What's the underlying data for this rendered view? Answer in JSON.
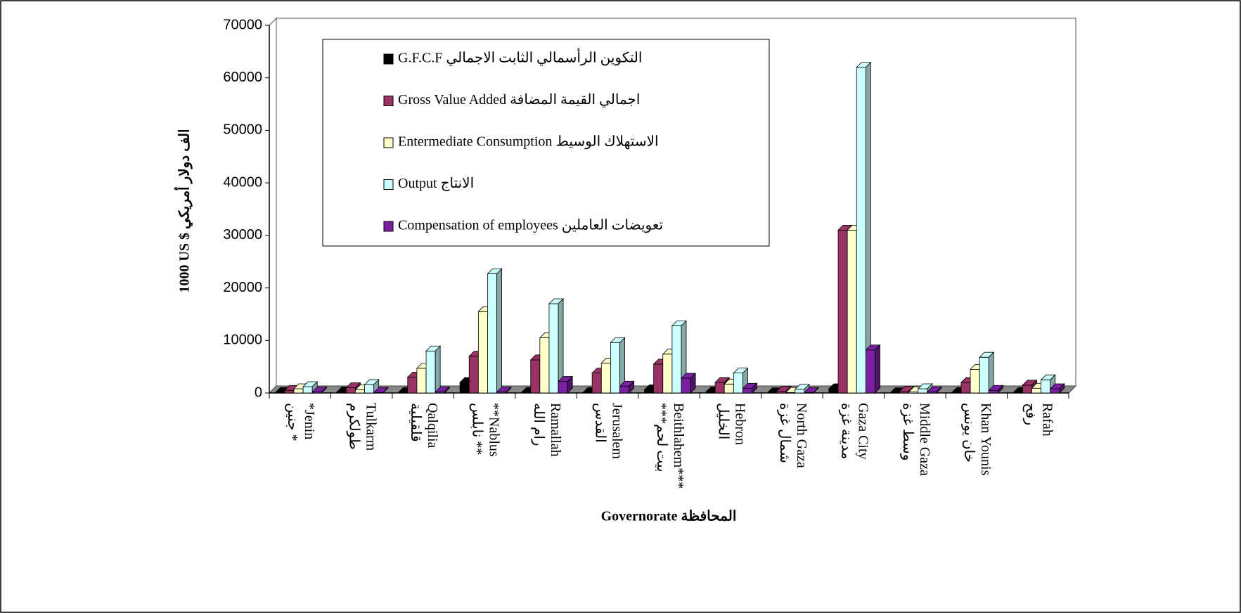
{
  "chart_data": {
    "type": "bar3d",
    "y_label": "1000 US $ الف دولار أمريكي",
    "x_label": "Governorate المحافظة",
    "categories": [
      [
        "جنين *",
        "*Jenin"
      ],
      [
        "طولكرم",
        "Tulkarm"
      ],
      [
        "قلقيلية",
        "Qalqilia"
      ],
      [
        "نابلس **",
        "**Nablus"
      ],
      [
        "رام الله",
        "Ramallah"
      ],
      [
        "القدس",
        "Jerusalem"
      ],
      [
        "***بيت لحم",
        "Beithlahem***"
      ],
      [
        "الخليل",
        "Hebron"
      ],
      [
        "شمال غزة",
        "North Gaza"
      ],
      [
        "مدينة غزة",
        "Gaza City"
      ],
      [
        "وسط غزة",
        "Middle Gaza"
      ],
      [
        "خان يونس",
        "Khan Younis"
      ],
      [
        "رفح",
        "Rafah"
      ]
    ],
    "series": [
      {
        "name": "G.F.C.F التكوين الرأسمالي الثابت الاجمالي",
        "color": "#000000",
        "values": [
          100,
          200,
          100,
          2000,
          100,
          100,
          600,
          200,
          50,
          800,
          50,
          100,
          100
        ]
      },
      {
        "name": "Gross Value Added اجمالي القيمة المضافة",
        "color": "#993366",
        "values": [
          500,
          1000,
          3000,
          7000,
          6300,
          3800,
          5500,
          2000,
          300,
          31000,
          300,
          2000,
          1500
        ]
      },
      {
        "name": "Entermediate Consumption الاستهلاك الوسيط",
        "color": "#ffffcc",
        "values": [
          800,
          600,
          4700,
          15500,
          10500,
          5700,
          7400,
          1700,
          100,
          31000,
          200,
          4500,
          900
        ]
      },
      {
        "name": "Output الانتاج",
        "color": "#ccffff",
        "values": [
          1200,
          1600,
          8000,
          22700,
          17000,
          9600,
          12800,
          3800,
          700,
          62000,
          800,
          6800,
          2500
        ]
      },
      {
        "name": "Compensation of employees تعويضات العاملين",
        "color": "#7a1fa2",
        "values": [
          200,
          100,
          200,
          200,
          2200,
          1300,
          2800,
          900,
          100,
          8200,
          200,
          500,
          800
        ]
      }
    ],
    "ylim": [
      0,
      70000
    ],
    "yticks": [
      0,
      10000,
      20000,
      30000,
      40000,
      50000,
      60000,
      70000
    ],
    "grid": false
  }
}
